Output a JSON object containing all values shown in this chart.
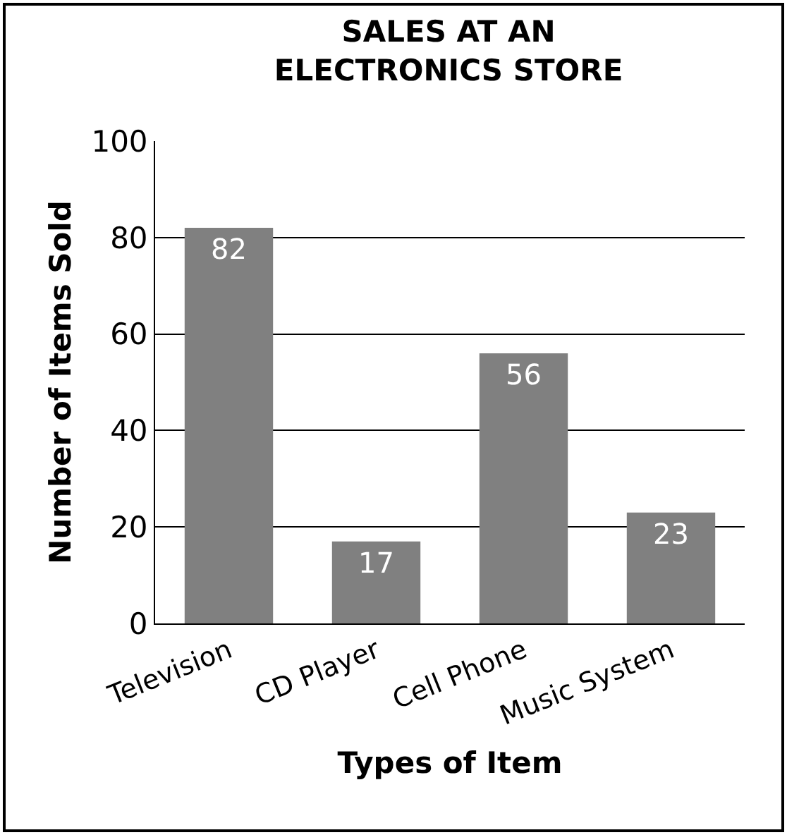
{
  "chart_data": {
    "type": "bar",
    "title": "SALES AT AN\nELECTRONICS STORE",
    "xlabel": "Types of Item",
    "ylabel": "Number of Items Sold",
    "categories": [
      "Television",
      "CD Player",
      "Cell Phone",
      "Music System"
    ],
    "values": [
      82,
      17,
      56,
      23
    ],
    "color": "#808080",
    "data_labels": true,
    "ylim": [
      0,
      100
    ],
    "yticks": [
      0,
      20,
      40,
      60,
      80,
      100
    ],
    "grid": "y"
  }
}
